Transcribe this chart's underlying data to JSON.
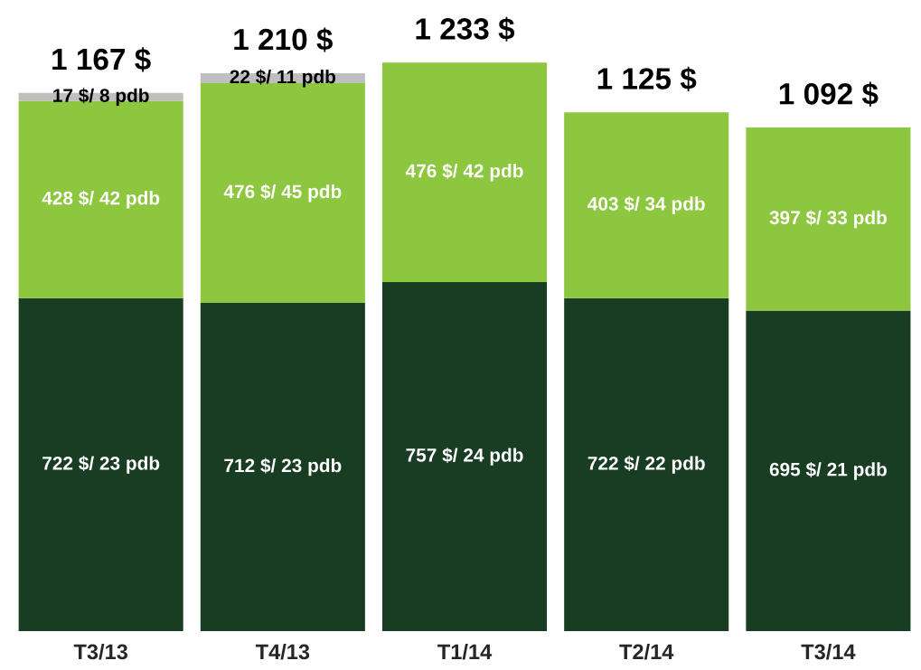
{
  "chart_data": {
    "type": "bar",
    "stacked": true,
    "categories": [
      "T3/13",
      "T4/13",
      "T1/14",
      "T2/14",
      "T3/14"
    ],
    "series": [
      {
        "color": "#193d23",
        "values": [
          722,
          712,
          757,
          722,
          695
        ],
        "value_labels": [
          "722 $/ 23 pdb",
          "712 $/ 23 pdb",
          "757 $/ 24 pdb",
          "722 $/ 22 pdb",
          "695 $/ 21 pdb"
        ]
      },
      {
        "color": "#8dc63f",
        "values": [
          428,
          476,
          476,
          403,
          397
        ],
        "value_labels": [
          "428 $/ 42 pdb",
          "476 $/ 45 pdb",
          "476 $/ 42 pdb",
          "403 $/ 34 pdb",
          "397 $/ 33 pdb"
        ]
      },
      {
        "color": "#bfbfbf",
        "values": [
          17,
          22,
          null,
          null,
          null
        ],
        "value_labels": [
          "17 $/ 8 pdb",
          "22 $/ 11 pdb",
          null,
          null,
          null
        ]
      }
    ],
    "totals": [
      "1 167 $",
      "1 210 $",
      "1 233 $",
      "1 125 $",
      "1 092 $"
    ],
    "tick_labels": "x"
  }
}
